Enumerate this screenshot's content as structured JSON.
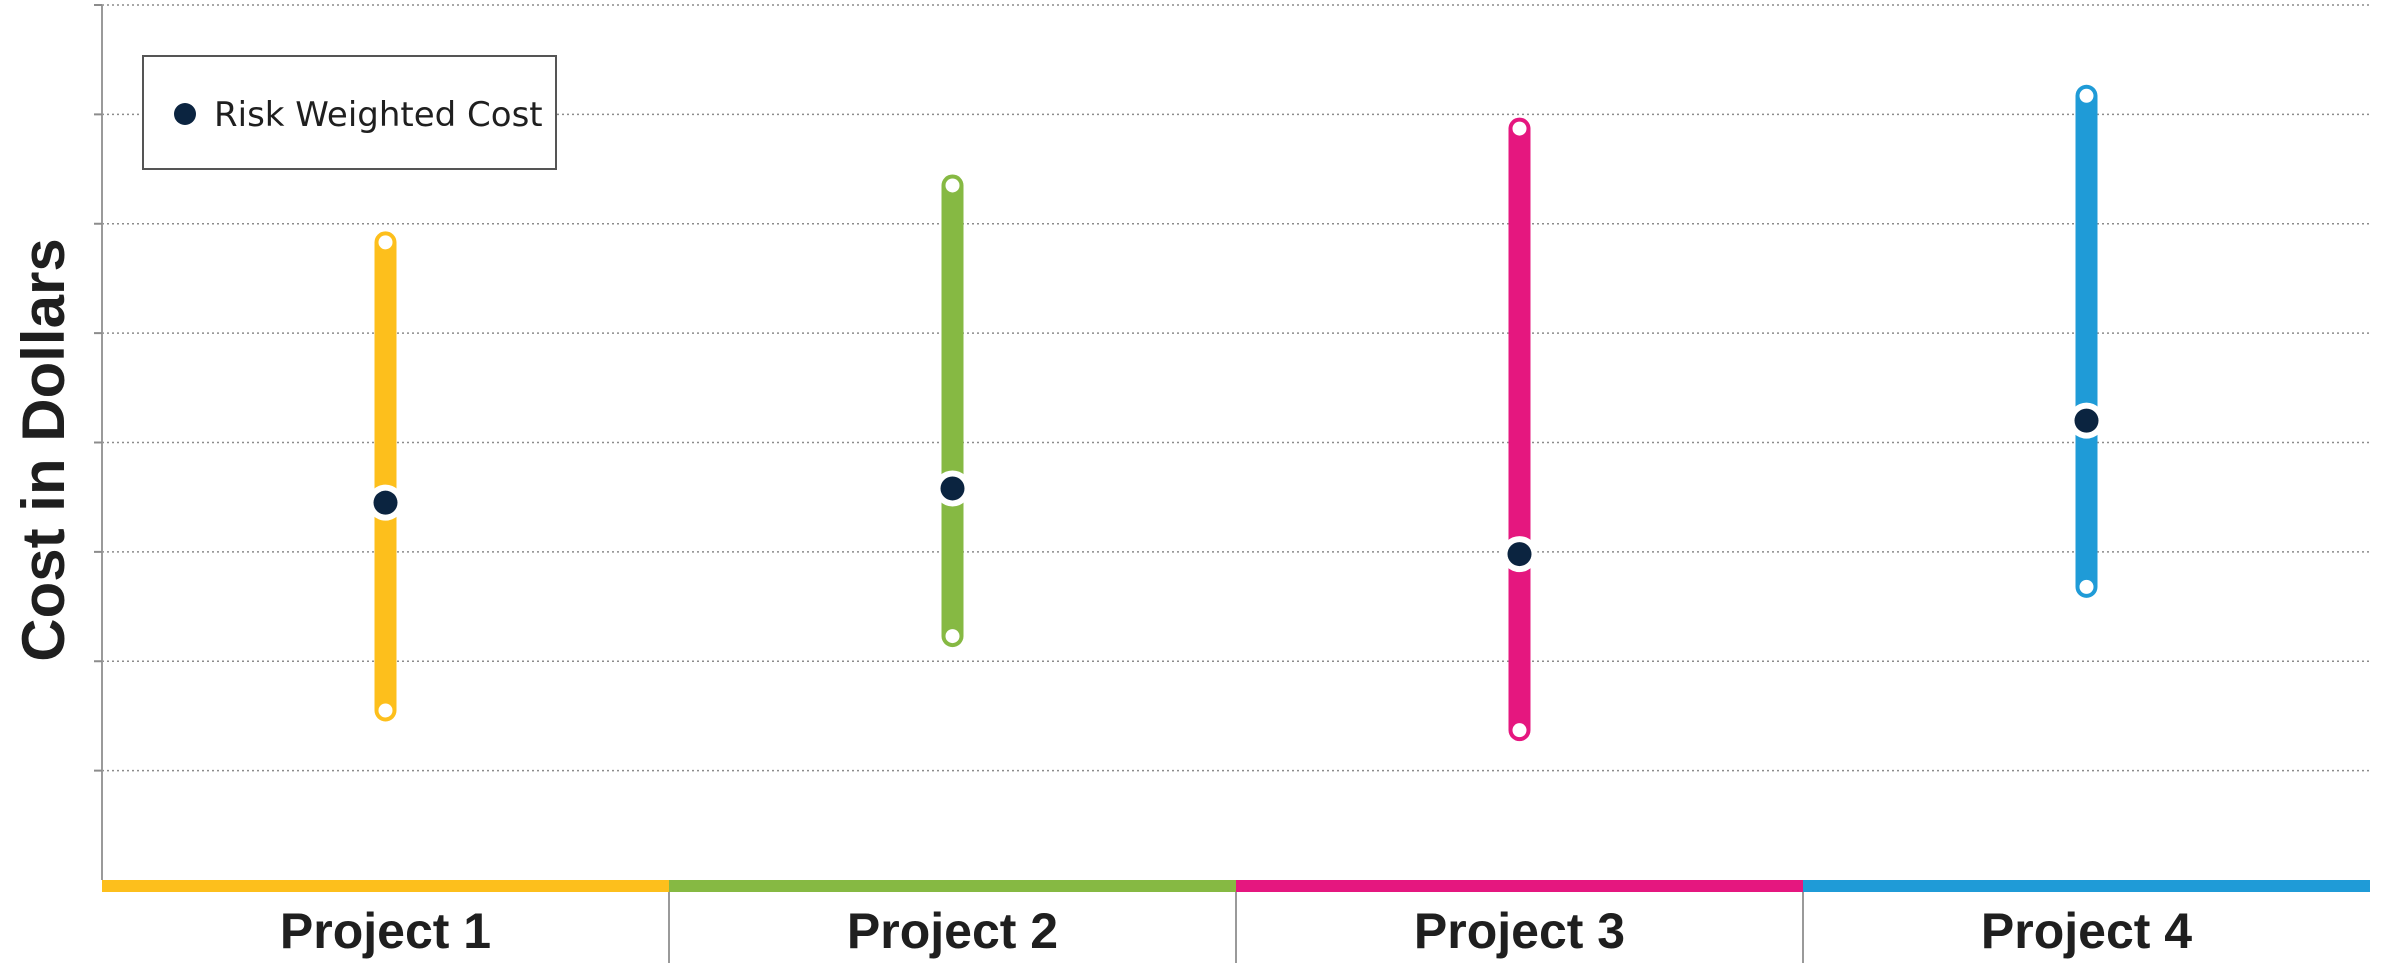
{
  "chart_data": {
    "type": "range",
    "title": "",
    "xlabel": "",
    "ylabel": "Cost in Dollars",
    "ylim": [
      0,
      8
    ],
    "grid": true,
    "legend": {
      "entries": [
        "Risk Weighted Cost"
      ],
      "position": "top-left"
    },
    "categories": [
      "Project 1",
      "Project 2",
      "Project 3",
      "Project 4"
    ],
    "series": [
      {
        "name": "Risk Weighted Cost",
        "values": [
          3.45,
          3.58,
          2.98,
          4.2
        ]
      }
    ],
    "ranges": [
      {
        "category": "Project 1",
        "low": 1.55,
        "high": 5.83,
        "color": "#fdbf1c"
      },
      {
        "category": "Project 2",
        "low": 2.23,
        "high": 6.35,
        "color": "#86b943"
      },
      {
        "category": "Project 3",
        "low": 1.37,
        "high": 6.87,
        "color": "#e5177f"
      },
      {
        "category": "Project 4",
        "low": 2.68,
        "high": 7.17,
        "color": "#1f9bd7"
      }
    ],
    "marker_color": "#0b2440"
  }
}
